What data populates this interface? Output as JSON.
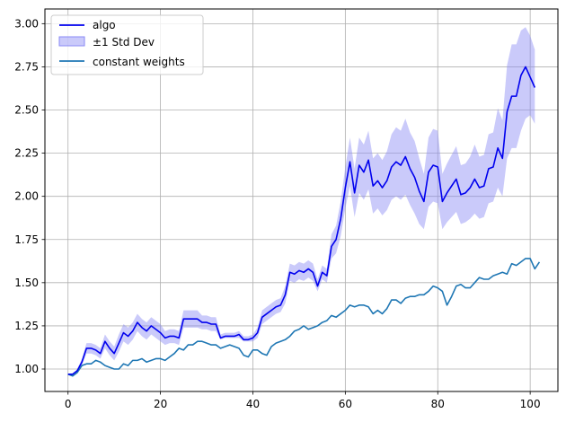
{
  "chart_data": {
    "type": "line",
    "title": "",
    "xlabel": "",
    "ylabel": "",
    "xlim": [
      -5,
      106
    ],
    "ylim": [
      0.87,
      3.085
    ],
    "xticks": [
      0,
      20,
      40,
      60,
      80,
      100
    ],
    "yticks": [
      1.0,
      1.25,
      1.5,
      1.75,
      2.0,
      2.25,
      2.5,
      2.75,
      3.0
    ],
    "ytick_labels": [
      "1.00",
      "1.25",
      "1.50",
      "1.75",
      "2.00",
      "2.25",
      "2.50",
      "2.75",
      "3.00"
    ],
    "grid": true,
    "legend_position": "top-left",
    "colors": {
      "algo": "#0000ee",
      "band": "#8a8af5",
      "constant": "#1f77b4"
    },
    "series": [
      {
        "name": "algo",
        "kind": "line",
        "x_start": 0,
        "values": [
          0.97,
          0.97,
          0.99,
          1.04,
          1.12,
          1.12,
          1.11,
          1.09,
          1.16,
          1.12,
          1.09,
          1.15,
          1.21,
          1.19,
          1.22,
          1.27,
          1.24,
          1.22,
          1.25,
          1.23,
          1.21,
          1.18,
          1.19,
          1.19,
          1.18,
          1.29,
          1.29,
          1.29,
          1.29,
          1.27,
          1.27,
          1.26,
          1.26,
          1.18,
          1.19,
          1.19,
          1.19,
          1.2,
          1.17,
          1.17,
          1.18,
          1.21,
          1.3,
          1.32,
          1.34,
          1.36,
          1.37,
          1.43,
          1.56,
          1.55,
          1.57,
          1.56,
          1.58,
          1.56,
          1.48,
          1.56,
          1.54,
          1.71,
          1.75,
          1.87,
          2.05,
          2.2,
          2.02,
          2.18,
          2.14,
          2.21,
          2.06,
          2.09,
          2.05,
          2.09,
          2.17,
          2.2,
          2.18,
          2.23,
          2.16,
          2.11,
          2.03,
          1.97,
          2.14,
          2.18,
          2.17,
          1.97,
          2.02,
          2.06,
          2.1,
          2.01,
          2.02,
          2.05,
          2.1,
          2.05,
          2.06,
          2.16,
          2.17,
          2.28,
          2.22,
          2.49,
          2.58,
          2.58,
          2.7,
          2.75,
          2.69,
          2.63
        ]
      },
      {
        "name": "±1 Std Dev",
        "kind": "band",
        "x_start": 0,
        "lower": [
          0.97,
          0.97,
          0.98,
          1.02,
          1.09,
          1.09,
          1.08,
          1.06,
          1.12,
          1.08,
          1.05,
          1.1,
          1.16,
          1.14,
          1.17,
          1.22,
          1.19,
          1.17,
          1.2,
          1.18,
          1.16,
          1.14,
          1.15,
          1.15,
          1.14,
          1.24,
          1.24,
          1.24,
          1.24,
          1.23,
          1.23,
          1.22,
          1.22,
          1.17,
          1.18,
          1.18,
          1.18,
          1.18,
          1.16,
          1.16,
          1.16,
          1.18,
          1.26,
          1.28,
          1.3,
          1.32,
          1.33,
          1.38,
          1.51,
          1.5,
          1.52,
          1.51,
          1.53,
          1.51,
          1.45,
          1.52,
          1.5,
          1.64,
          1.67,
          1.77,
          1.93,
          2.06,
          1.88,
          2.02,
          1.98,
          2.04,
          1.9,
          1.93,
          1.89,
          1.92,
          1.98,
          2.0,
          1.98,
          2.01,
          1.95,
          1.9,
          1.84,
          1.81,
          1.94,
          1.97,
          1.96,
          1.81,
          1.85,
          1.88,
          1.91,
          1.84,
          1.85,
          1.87,
          1.9,
          1.87,
          1.88,
          1.96,
          1.97,
          2.05,
          2.0,
          2.22,
          2.28,
          2.28,
          2.38,
          2.45,
          2.47,
          2.42
        ],
        "upper": [
          0.97,
          0.97,
          1.0,
          1.06,
          1.15,
          1.15,
          1.14,
          1.12,
          1.2,
          1.16,
          1.13,
          1.2,
          1.26,
          1.24,
          1.27,
          1.32,
          1.29,
          1.27,
          1.3,
          1.28,
          1.26,
          1.22,
          1.23,
          1.23,
          1.22,
          1.34,
          1.34,
          1.34,
          1.34,
          1.31,
          1.31,
          1.3,
          1.3,
          1.2,
          1.21,
          1.21,
          1.21,
          1.22,
          1.19,
          1.19,
          1.2,
          1.24,
          1.34,
          1.36,
          1.38,
          1.4,
          1.41,
          1.48,
          1.61,
          1.6,
          1.62,
          1.61,
          1.63,
          1.61,
          1.52,
          1.6,
          1.58,
          1.78,
          1.83,
          1.97,
          2.17,
          2.34,
          2.16,
          2.34,
          2.3,
          2.38,
          2.22,
          2.25,
          2.21,
          2.26,
          2.36,
          2.4,
          2.38,
          2.45,
          2.37,
          2.32,
          2.22,
          2.13,
          2.34,
          2.39,
          2.38,
          2.13,
          2.19,
          2.24,
          2.29,
          2.18,
          2.19,
          2.23,
          2.3,
          2.23,
          2.24,
          2.36,
          2.37,
          2.51,
          2.44,
          2.76,
          2.88,
          2.88,
          2.96,
          2.98,
          2.93,
          2.85
        ]
      },
      {
        "name": "constant weights",
        "kind": "line",
        "x_start": 0,
        "values": [
          0.97,
          0.96,
          0.98,
          1.02,
          1.03,
          1.03,
          1.05,
          1.04,
          1.02,
          1.01,
          1.0,
          1.0,
          1.03,
          1.02,
          1.05,
          1.05,
          1.06,
          1.04,
          1.05,
          1.06,
          1.06,
          1.05,
          1.07,
          1.09,
          1.12,
          1.11,
          1.14,
          1.14,
          1.16,
          1.16,
          1.15,
          1.14,
          1.14,
          1.12,
          1.13,
          1.14,
          1.13,
          1.12,
          1.08,
          1.07,
          1.11,
          1.11,
          1.09,
          1.08,
          1.13,
          1.15,
          1.16,
          1.17,
          1.19,
          1.22,
          1.23,
          1.25,
          1.23,
          1.24,
          1.25,
          1.27,
          1.28,
          1.31,
          1.3,
          1.32,
          1.34,
          1.37,
          1.36,
          1.37,
          1.37,
          1.36,
          1.32,
          1.34,
          1.32,
          1.35,
          1.4,
          1.4,
          1.38,
          1.41,
          1.42,
          1.42,
          1.43,
          1.43,
          1.45,
          1.48,
          1.47,
          1.45,
          1.37,
          1.42,
          1.48,
          1.49,
          1.47,
          1.47,
          1.5,
          1.53,
          1.52,
          1.52,
          1.54,
          1.55,
          1.56,
          1.55,
          1.61,
          1.6,
          1.62,
          1.64,
          1.64,
          1.58,
          1.62
        ]
      }
    ],
    "legend": [
      {
        "label": "algo",
        "kind": "line",
        "color": "#0000ee"
      },
      {
        "label": "±1 Std Dev",
        "kind": "patch",
        "color": "#8a8af5"
      },
      {
        "label": "constant weights",
        "kind": "line",
        "color": "#1f77b4"
      }
    ]
  }
}
